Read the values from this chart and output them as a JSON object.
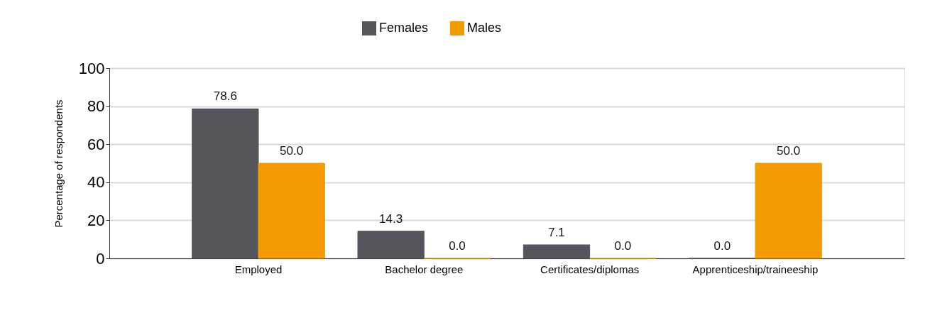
{
  "chart_data": {
    "type": "bar",
    "ylabel": "Percentage of respondents",
    "categories": [
      "Employed",
      "Bachelor degree",
      "Certificates/diplomas",
      "Apprenticeship/traineeship"
    ],
    "series": [
      {
        "name": "Females",
        "color": "#54565b",
        "values": [
          78.6,
          14.3,
          7.1,
          0
        ],
        "value_labels": [
          "78.6",
          "14.3",
          "7.1",
          "0.0"
        ]
      },
      {
        "name": "Males",
        "color": "#f39a00",
        "values": [
          50,
          0,
          0,
          50
        ],
        "value_labels": [
          "50.0",
          "0.0",
          "0.0",
          "50.0"
        ]
      }
    ],
    "ylim": [
      0,
      100
    ],
    "yticks": [
      0,
      20,
      40,
      60,
      80,
      100
    ],
    "grid": "y",
    "legend": "top"
  }
}
